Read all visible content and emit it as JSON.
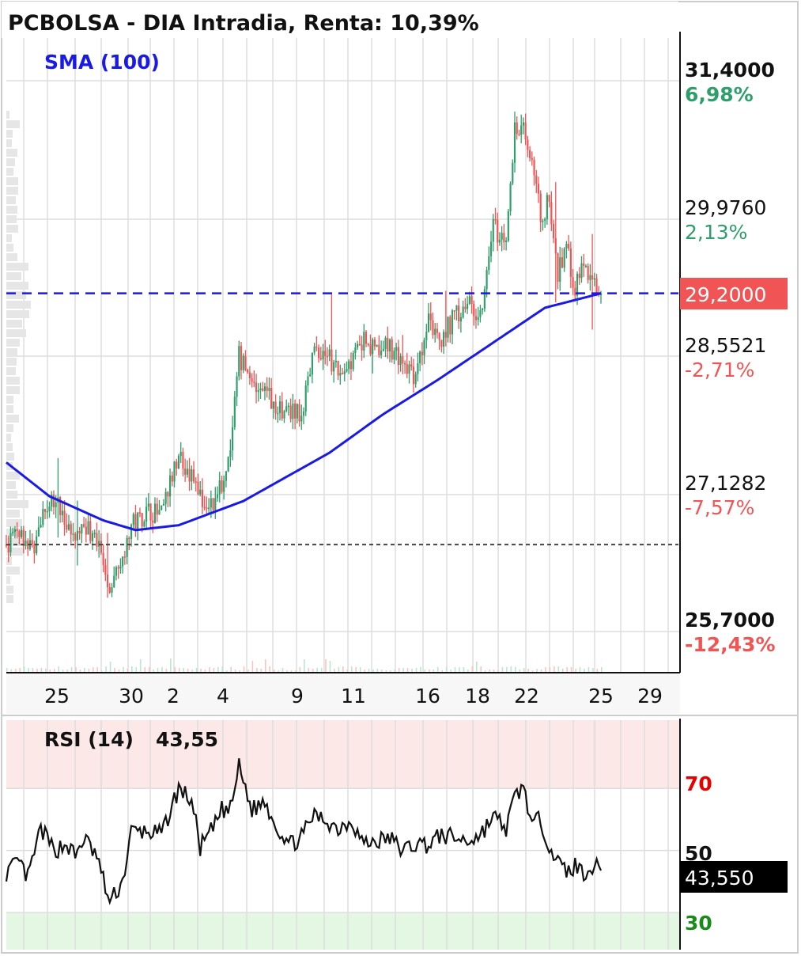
{
  "header": {
    "title": "PCBOLSA - DIA Intradia, Renta: 10,39%",
    "indicator_label": "SMA (100)"
  },
  "colors": {
    "up": "#2e9e6b",
    "down": "#f05454",
    "sma": "#1a1ae6",
    "rsi_line": "#111111",
    "overbought_zone": "#fde8e8",
    "oversold_zone": "#e3f7e3",
    "grid": "#dddddd",
    "current_price_badge": "#f05454",
    "rsi_badge": "#000000"
  },
  "price_axis": [
    {
      "value": "31,4000",
      "pct": "6,98%",
      "bold": true,
      "pct_color": "up"
    },
    {
      "value": "29,9760",
      "pct": "2,13%",
      "bold": false,
      "pct_color": "up"
    },
    {
      "value": "28,5521",
      "pct": "-2,71%",
      "bold": false,
      "pct_color": "down"
    },
    {
      "value": "27,1282",
      "pct": "-7,57%",
      "bold": false,
      "pct_color": "down"
    },
    {
      "value": "25,7000",
      "pct": "-12,43%",
      "bold": true,
      "pct_color": "down"
    }
  ],
  "current_price": "29,2000",
  "x_labels": [
    "25",
    "30",
    "2",
    "4",
    "9",
    "11",
    "16",
    "18",
    "22",
    "25",
    "29"
  ],
  "rsi": {
    "label": "RSI (14)",
    "value": "43,55",
    "badge": "43,550",
    "levels": [
      "70",
      "50",
      "30"
    ]
  },
  "chart_data": {
    "type": "candlestick",
    "title": "PCBOLSA - DIA Intradia, Renta: 10,39%",
    "x_ticks": [
      "25",
      "30",
      "2",
      "4",
      "9",
      "11",
      "16",
      "18",
      "22",
      "25",
      "29"
    ],
    "ylim": [
      25.7,
      31.4
    ],
    "reference_price": 26.6,
    "last_price": 29.2,
    "price_anchors": [
      [
        0,
        26.6
      ],
      [
        6,
        26.75
      ],
      [
        12,
        26.55
      ],
      [
        20,
        27.05
      ],
      [
        26,
        27.0
      ],
      [
        30,
        26.65
      ],
      [
        36,
        26.85
      ],
      [
        42,
        26.6
      ],
      [
        48,
        26.2
      ],
      [
        54,
        26.5
      ],
      [
        58,
        26.8
      ],
      [
        66,
        26.95
      ],
      [
        72,
        26.9
      ],
      [
        80,
        27.55
      ],
      [
        86,
        27.3
      ],
      [
        92,
        27.0
      ],
      [
        98,
        27.1
      ],
      [
        104,
        27.5
      ],
      [
        108,
        28.55
      ],
      [
        114,
        28.3
      ],
      [
        120,
        28.2
      ],
      [
        126,
        28.0
      ],
      [
        132,
        27.95
      ],
      [
        138,
        28.0
      ],
      [
        142,
        28.55
      ],
      [
        148,
        28.6
      ],
      [
        154,
        28.4
      ],
      [
        160,
        28.5
      ],
      [
        166,
        28.7
      ],
      [
        172,
        28.6
      ],
      [
        178,
        28.65
      ],
      [
        184,
        28.5
      ],
      [
        190,
        28.3
      ],
      [
        196,
        28.9
      ],
      [
        202,
        28.75
      ],
      [
        208,
        28.95
      ],
      [
        214,
        29.1
      ],
      [
        220,
        29.0
      ],
      [
        226,
        29.9
      ],
      [
        232,
        29.7
      ],
      [
        236,
        30.9
      ],
      [
        240,
        31.0
      ],
      [
        244,
        30.5
      ],
      [
        248,
        30.0
      ],
      [
        252,
        30.15
      ],
      [
        256,
        29.4
      ],
      [
        260,
        29.7
      ],
      [
        264,
        29.25
      ],
      [
        268,
        29.5
      ],
      [
        272,
        29.35
      ],
      [
        276,
        29.2
      ]
    ],
    "sma_anchors": [
      [
        0,
        27.45
      ],
      [
        20,
        27.1
      ],
      [
        45,
        26.85
      ],
      [
        60,
        26.75
      ],
      [
        80,
        26.8
      ],
      [
        110,
        27.05
      ],
      [
        150,
        27.55
      ],
      [
        175,
        27.95
      ],
      [
        200,
        28.3
      ],
      [
        230,
        28.75
      ],
      [
        250,
        29.05
      ],
      [
        276,
        29.2
      ]
    ],
    "rsi_ylim": [
      18,
      92
    ],
    "rsi_levels": [
      70,
      50,
      30
    ],
    "rsi_last": 43.55,
    "rsi_anchors": [
      [
        0,
        43
      ],
      [
        6,
        46
      ],
      [
        10,
        41
      ],
      [
        16,
        57
      ],
      [
        22,
        50
      ],
      [
        28,
        52
      ],
      [
        32,
        48
      ],
      [
        36,
        54
      ],
      [
        42,
        48
      ],
      [
        48,
        33
      ],
      [
        54,
        40
      ],
      [
        58,
        56
      ],
      [
        66,
        56
      ],
      [
        72,
        55
      ],
      [
        80,
        70
      ],
      [
        86,
        66
      ],
      [
        90,
        51
      ],
      [
        96,
        57
      ],
      [
        100,
        63
      ],
      [
        104,
        63
      ],
      [
        108,
        77
      ],
      [
        114,
        63
      ],
      [
        120,
        66
      ],
      [
        126,
        57
      ],
      [
        132,
        52
      ],
      [
        138,
        55
      ],
      [
        142,
        61
      ],
      [
        148,
        60
      ],
      [
        154,
        57
      ],
      [
        160,
        60
      ],
      [
        166,
        52
      ],
      [
        172,
        53
      ],
      [
        178,
        54
      ],
      [
        184,
        50
      ],
      [
        190,
        52
      ],
      [
        196,
        52
      ],
      [
        202,
        55
      ],
      [
        208,
        54
      ],
      [
        214,
        53
      ],
      [
        220,
        55
      ],
      [
        226,
        61
      ],
      [
        232,
        57
      ],
      [
        236,
        67
      ],
      [
        240,
        71
      ],
      [
        244,
        58
      ],
      [
        248,
        60
      ],
      [
        252,
        52
      ],
      [
        256,
        46
      ],
      [
        260,
        43
      ],
      [
        264,
        45
      ],
      [
        268,
        43
      ],
      [
        272,
        45
      ],
      [
        276,
        43.55
      ]
    ]
  }
}
